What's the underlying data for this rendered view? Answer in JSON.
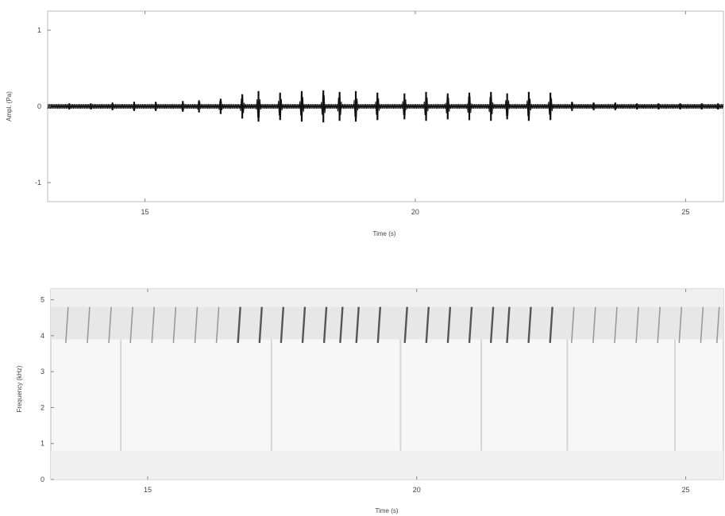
{
  "chart_data": [
    {
      "type": "line",
      "panel": "waveform",
      "xlabel": "Time (s)",
      "ylabel": "Ampl. (Pa)",
      "xlim": [
        13.2,
        25.7
      ],
      "ylim": [
        -1.25,
        1.25
      ],
      "xticks": [
        15,
        20,
        25
      ],
      "yticks": [
        1,
        0,
        -1
      ],
      "xtick_labels": [
        "15",
        "20",
        "25"
      ],
      "ytick_labels": [
        "1",
        "0",
        "-1"
      ],
      "grid": false,
      "series": [
        {
          "color": "#111111",
          "baseline_amplitude": 0.03,
          "pulses": [
            {
              "t": 13.6,
              "a": 0.04
            },
            {
              "t": 14.0,
              "a": 0.04
            },
            {
              "t": 14.4,
              "a": 0.05
            },
            {
              "t": 14.8,
              "a": 0.06
            },
            {
              "t": 15.2,
              "a": 0.06
            },
            {
              "t": 15.7,
              "a": 0.07
            },
            {
              "t": 16.0,
              "a": 0.08
            },
            {
              "t": 16.4,
              "a": 0.1
            },
            {
              "t": 16.8,
              "a": 0.16
            },
            {
              "t": 17.1,
              "a": 0.2
            },
            {
              "t": 17.5,
              "a": 0.18
            },
            {
              "t": 17.9,
              "a": 0.2
            },
            {
              "t": 18.3,
              "a": 0.21
            },
            {
              "t": 18.6,
              "a": 0.19
            },
            {
              "t": 18.9,
              "a": 0.2
            },
            {
              "t": 19.3,
              "a": 0.18
            },
            {
              "t": 19.8,
              "a": 0.17
            },
            {
              "t": 20.2,
              "a": 0.19
            },
            {
              "t": 20.6,
              "a": 0.17
            },
            {
              "t": 21.0,
              "a": 0.18
            },
            {
              "t": 21.4,
              "a": 0.19
            },
            {
              "t": 21.7,
              "a": 0.17
            },
            {
              "t": 22.1,
              "a": 0.19
            },
            {
              "t": 22.5,
              "a": 0.18
            },
            {
              "t": 22.9,
              "a": 0.06
            },
            {
              "t": 23.3,
              "a": 0.05
            },
            {
              "t": 23.7,
              "a": 0.05
            },
            {
              "t": 24.1,
              "a": 0.04
            },
            {
              "t": 24.5,
              "a": 0.04
            },
            {
              "t": 24.9,
              "a": 0.04
            },
            {
              "t": 25.3,
              "a": 0.04
            },
            {
              "t": 25.6,
              "a": 0.04
            }
          ]
        }
      ]
    },
    {
      "type": "heatmap",
      "panel": "spectrogram",
      "xlabel": "Time (s)",
      "ylabel": "Frequency (kHz)",
      "xlim": [
        13.2,
        25.7
      ],
      "ylim": [
        0,
        5.3
      ],
      "xticks": [
        15,
        20,
        25
      ],
      "yticks": [
        5,
        4,
        3,
        2,
        1,
        0
      ],
      "xtick_labels": [
        "15",
        "20",
        "25"
      ],
      "ytick_labels": [
        "5",
        "4",
        "3",
        "2",
        "1",
        "0"
      ],
      "colormap": "gray-reversed",
      "band_khz": [
        3.9,
        4.8
      ],
      "event_times": [
        13.5,
        13.9,
        14.3,
        14.7,
        15.1,
        15.5,
        15.9,
        16.3,
        16.7,
        17.1,
        17.5,
        17.9,
        18.3,
        18.6,
        18.9,
        19.3,
        19.8,
        20.2,
        20.6,
        21.0,
        21.4,
        21.7,
        22.1,
        22.5,
        22.9,
        23.3,
        23.7,
        24.1,
        24.5,
        24.9,
        25.3,
        25.6
      ],
      "broadband_times": [
        14.5,
        17.3,
        19.7,
        21.2,
        22.8,
        24.8
      ]
    }
  ]
}
